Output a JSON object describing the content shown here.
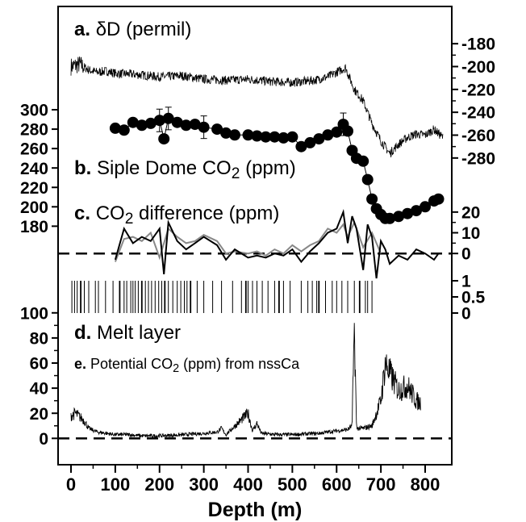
{
  "chart_data": {
    "type": "line",
    "xlabel": "Depth (m)",
    "x_ticks": [
      "0",
      "100",
      "200",
      "300",
      "400",
      "500",
      "600",
      "700",
      "800"
    ],
    "xlim": [
      0,
      850
    ],
    "panels": [
      {
        "id": "a",
        "label_prefix": "a.",
        "title": "δD (permil)",
        "axis_side": "right",
        "ylim": [
          -290,
          -170
        ],
        "y_ticks": [
          "-180",
          "-200",
          "-220",
          "-240",
          "-260",
          "-280"
        ],
        "series": [
          {
            "type": "line",
            "x": [
              0,
              20,
              40,
              60,
              80,
              100,
              150,
              200,
              250,
              300,
              350,
              400,
              450,
              500,
              550,
              580,
              600,
              620,
              640,
              660,
              680,
              700,
              720,
              740,
              760,
              780,
              800,
              820,
              840
            ],
            "y": [
              -200,
              -198,
              -203,
              -205,
              -204,
              -206,
              -207,
              -209,
              -208,
              -211,
              -212,
              -211,
              -213,
              -214,
              -212,
              -209,
              -205,
              -201,
              -220,
              -230,
              -250,
              -265,
              -276,
              -268,
              -262,
              -259,
              -260,
              -255,
              -262
            ]
          }
        ]
      },
      {
        "id": "b",
        "label_prefix": "b.",
        "title": "Siple Dome CO",
        "title_sub": "2",
        "title_suffix": " (ppm)",
        "axis_side": "left",
        "ylim": [
          172,
          305
        ],
        "y_ticks": [
          "300",
          "280",
          "260",
          "240",
          "220",
          "200",
          "180"
        ],
        "series": [
          {
            "type": "scatter-line",
            "x": [
              100,
              120,
              140,
              160,
              180,
              200,
              210,
              220,
              240,
              260,
              280,
              300,
              330,
              350,
              370,
              400,
              420,
              440,
              460,
              480,
              500,
              520,
              540,
              560,
              580,
              600,
              615,
              625,
              635,
              645,
              660,
              670,
              680,
              690,
              700,
              710,
              720,
              740,
              760,
              780,
              800,
              820,
              830
            ],
            "y": [
              281,
              279,
              287,
              284,
              286,
              289,
              270,
              291,
              287,
              284,
              285,
              282,
              280,
              276,
              274,
              274,
              273,
              272,
              272,
              271,
              272,
              262,
              266,
              270,
              274,
              277,
              285,
              278,
              258,
              250,
              247,
              228,
              208,
              198,
              192,
              188,
              188,
              190,
              193,
              196,
              200,
              206,
              208
            ]
          }
        ]
      },
      {
        "id": "c",
        "label_prefix": "c.",
        "title": "CO",
        "title_sub": "2",
        "title_suffix": " difference (ppm)",
        "axis_side": "right",
        "ylim": [
          -12,
          25
        ],
        "y_ticks": [
          "20",
          "10",
          "0"
        ],
        "series": [
          {
            "name": "",
            "color": "#000000",
            "x": [
              100,
              120,
              140,
              160,
              180,
              200,
              210,
              220,
              240,
              260,
              280,
              300,
              330,
              350,
              370,
              400,
              420,
              440,
              460,
              480,
              500,
              520,
              540,
              560,
              580,
              600,
              615,
              625,
              635,
              645,
              660,
              670,
              680,
              690,
              700,
              710,
              720,
              740,
              760,
              780,
              800,
              820,
              830
            ],
            "y": [
              -3,
              12,
              5,
              8,
              6,
              12,
              -10,
              15,
              6,
              2,
              5,
              8,
              4,
              -3,
              2,
              -2,
              -1,
              -2,
              0,
              -1,
              2,
              -4,
              1,
              5,
              10,
              12,
              20,
              5,
              18,
              12,
              -8,
              14,
              8,
              -12,
              6,
              2,
              -5,
              -1,
              -3,
              2,
              0,
              -3,
              0
            ]
          },
          {
            "name": "",
            "color": "#888888",
            "x": [
              100,
              120,
              140,
              160,
              180,
              200,
              220,
              240,
              260,
              280,
              300,
              330,
              350,
              370,
              400,
              420,
              440,
              460,
              480,
              500,
              520,
              540,
              560,
              580,
              600,
              615,
              625,
              640,
              660,
              680,
              700
            ],
            "y": [
              -4,
              7,
              8,
              6,
              10,
              -2,
              12,
              8,
              5,
              6,
              9,
              6,
              0,
              1,
              0,
              1,
              -1,
              2,
              0,
              4,
              1,
              4,
              6,
              12,
              10,
              14,
              8,
              15,
              3,
              10,
              0
            ]
          }
        ]
      },
      {
        "id": "melt",
        "axis_side": "right",
        "ylim": [
          0,
          1.2
        ],
        "y_ticks": [
          "1",
          "0.5",
          "0"
        ],
        "series": [
          {
            "type": "events",
            "x": [
              2,
              8,
              14,
              22,
              30,
              40,
              55,
              62,
              78,
              95,
              110,
              120,
              126,
              135,
              140,
              145,
              152,
              160,
              168,
              175,
              182,
              190,
              198,
              205,
              212,
              220,
              230,
              240,
              248,
              256,
              262,
              270,
              285,
              300,
              320,
              340,
              365,
              385,
              395,
              400,
              410,
              420,
              432,
              445,
              460,
              470,
              480,
              495,
              520,
              535,
              545,
              555,
              560,
              575,
              590,
              600,
              612,
              625,
              640,
              652,
              665,
              670,
              680
            ]
          }
        ]
      },
      {
        "id": "d_e",
        "label_prefix": "d.",
        "title": "Melt layer",
        "label2_prefix": "e.",
        "title2": "Potential CO",
        "title2_sub": "2",
        "title2_suffix": " (ppm) from nssCa",
        "axis_side": "left",
        "ylim": [
          -3,
          105
        ],
        "y_ticks": [
          "100",
          "80",
          "60",
          "40",
          "20",
          "0"
        ],
        "series": [
          {
            "type": "line",
            "x": [
              0,
              10,
              20,
              30,
              40,
              60,
              80,
              100,
              130,
              160,
              200,
              260,
              300,
              330,
              340,
              350,
              400,
              410,
              420,
              430,
              460,
              500,
              560,
              600,
              625,
              635,
              640,
              645,
              660,
              680,
              700,
              710,
              720,
              730,
              740,
              760,
              780,
              790
            ],
            "y": [
              18,
              20,
              17,
              14,
              8,
              5,
              4,
              3,
              3,
              2,
              2,
              3,
              4,
              5,
              8,
              3,
              20,
              6,
              12,
              4,
              3,
              3,
              4,
              6,
              7,
              10,
              92,
              8,
              8,
              10,
              30,
              60,
              52,
              45,
              38,
              42,
              30,
              28
            ]
          }
        ]
      }
    ]
  }
}
